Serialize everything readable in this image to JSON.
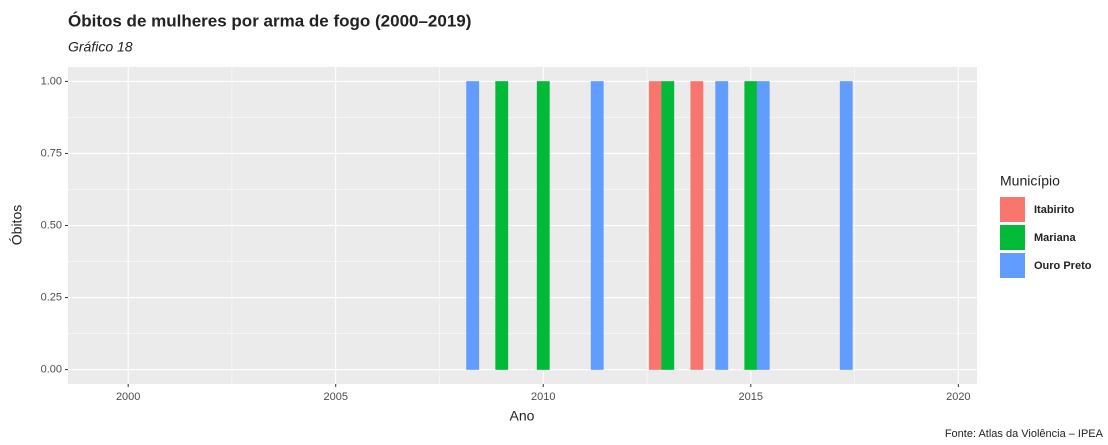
{
  "chart_data": {
    "type": "bar",
    "title": "Óbitos de mulheres por arma de fogo (2000–2019)",
    "subtitle": "Gráfico 18",
    "x_label": "Ano",
    "y_label": "Óbitos",
    "caption": "Fonte: Atlas da Violência – IPEA",
    "legend_title": "Município",
    "x": [
      2000,
      2001,
      2002,
      2003,
      2004,
      2005,
      2006,
      2007,
      2008,
      2009,
      2010,
      2011,
      2012,
      2013,
      2014,
      2015,
      2016,
      2017,
      2018,
      2019
    ],
    "series": [
      {
        "name": "Itabirito",
        "color": "#F8766D",
        "values": [
          0,
          0,
          0,
          0,
          0,
          0,
          0,
          0,
          0,
          0,
          0,
          0,
          0,
          1,
          1,
          0,
          0,
          0,
          0,
          0
        ]
      },
      {
        "name": "Mariana",
        "color": "#00BA38",
        "values": [
          0,
          0,
          0,
          0,
          0,
          0,
          0,
          0,
          0,
          1,
          1,
          0,
          0,
          1,
          0,
          1,
          0,
          0,
          0,
          0
        ]
      },
      {
        "name": "Ouro Preto",
        "color": "#619CFF",
        "values": [
          0,
          0,
          0,
          0,
          0,
          0,
          0,
          0,
          1,
          0,
          0,
          1,
          0,
          0,
          1,
          1,
          0,
          1,
          0,
          0
        ]
      }
    ],
    "xlim": [
      1998.55,
      2020.45
    ],
    "xticks": [
      2000,
      2005,
      2010,
      2015,
      2020
    ],
    "ylim": [
      -0.05,
      1.05
    ],
    "yticks": [
      {
        "value": 0,
        "label": "0.00"
      },
      {
        "value": 0.25,
        "label": "0.25"
      },
      {
        "value": 0.5,
        "label": "0.50"
      },
      {
        "value": 0.75,
        "label": "0.75"
      },
      {
        "value": 1,
        "label": "1.00"
      }
    ],
    "grid": true,
    "legend_position": "right"
  }
}
